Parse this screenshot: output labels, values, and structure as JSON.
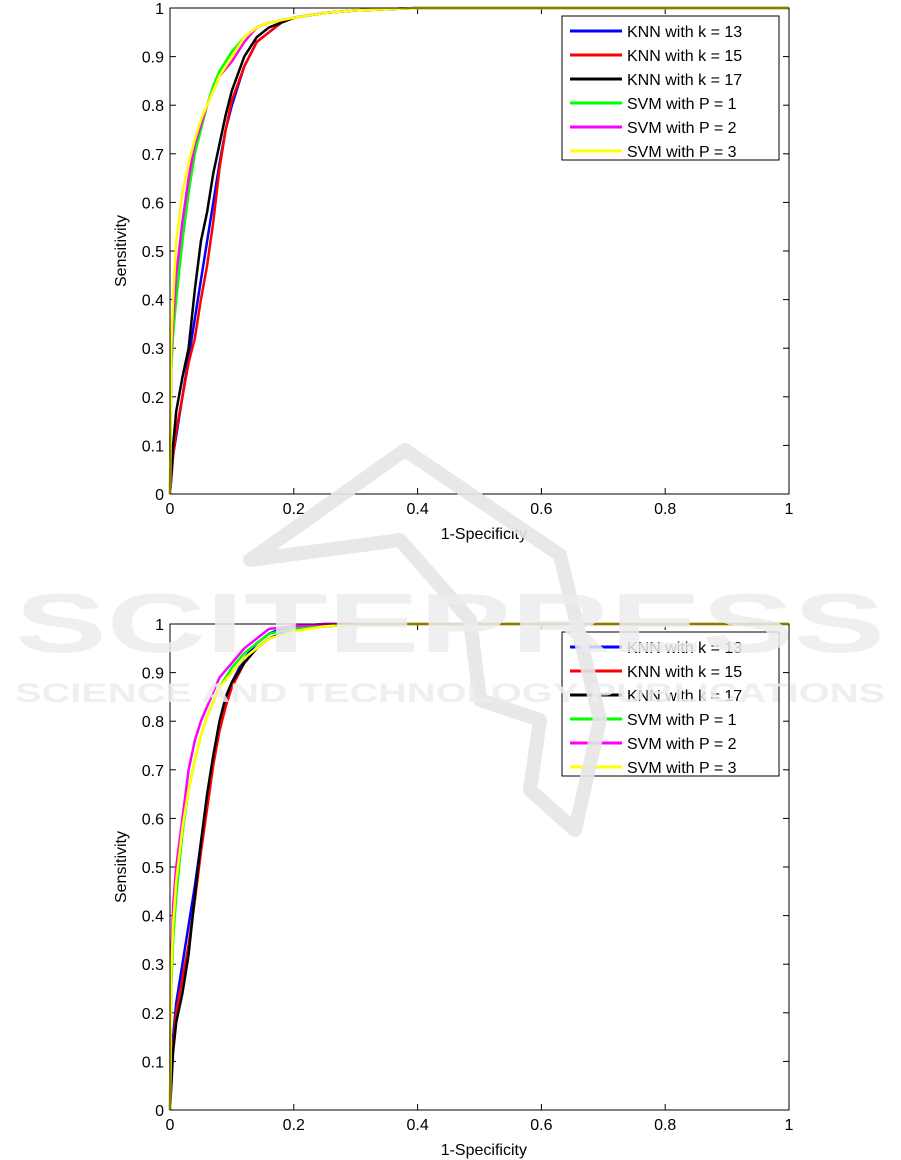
{
  "chart_data": [
    {
      "type": "line",
      "title": "",
      "xlabel": "1-Specificity",
      "ylabel": "Sensitivity",
      "xlim": [
        0,
        1
      ],
      "ylim": [
        0,
        1
      ],
      "xticks": [
        "0",
        "0.2",
        "0.4",
        "0.6",
        "0.8",
        "1"
      ],
      "yticks": [
        "0",
        "0.1",
        "0.2",
        "0.3",
        "0.4",
        "0.5",
        "0.6",
        "0.7",
        "0.8",
        "0.9",
        "1"
      ],
      "grid": false,
      "legend_position": "top-right",
      "series": [
        {
          "name": "KNN with k = 13",
          "color": "#0000ff",
          "x": [
            0,
            0.005,
            0.01,
            0.02,
            0.03,
            0.04,
            0.05,
            0.06,
            0.07,
            0.08,
            0.09,
            0.1,
            0.12,
            0.14,
            0.16,
            0.18,
            0.2,
            0.25,
            0.3,
            0.4,
            0.5,
            1.0
          ],
          "y": [
            0,
            0.08,
            0.12,
            0.2,
            0.28,
            0.36,
            0.44,
            0.52,
            0.6,
            0.68,
            0.75,
            0.8,
            0.88,
            0.93,
            0.95,
            0.97,
            0.98,
            0.99,
            0.995,
            1.0,
            1.0,
            1.0
          ]
        },
        {
          "name": "KNN with k = 15",
          "color": "#ff0000",
          "x": [
            0,
            0.005,
            0.01,
            0.02,
            0.03,
            0.04,
            0.05,
            0.06,
            0.07,
            0.08,
            0.09,
            0.1,
            0.12,
            0.14,
            0.16,
            0.18,
            0.2,
            0.25,
            0.3,
            0.4,
            0.5,
            1.0
          ],
          "y": [
            0,
            0.08,
            0.13,
            0.2,
            0.27,
            0.32,
            0.4,
            0.47,
            0.56,
            0.67,
            0.75,
            0.81,
            0.88,
            0.93,
            0.95,
            0.97,
            0.98,
            0.99,
            0.995,
            1.0,
            1.0,
            1.0
          ]
        },
        {
          "name": "KNN with k = 17",
          "color": "#000000",
          "x": [
            0,
            0.005,
            0.01,
            0.02,
            0.03,
            0.04,
            0.05,
            0.06,
            0.07,
            0.08,
            0.09,
            0.1,
            0.12,
            0.14,
            0.16,
            0.18,
            0.2,
            0.25,
            0.3,
            0.4,
            0.5,
            1.0
          ],
          "y": [
            0,
            0.1,
            0.17,
            0.24,
            0.3,
            0.42,
            0.52,
            0.58,
            0.66,
            0.72,
            0.78,
            0.83,
            0.9,
            0.94,
            0.96,
            0.97,
            0.98,
            0.99,
            0.995,
            1.0,
            1.0,
            1.0
          ]
        },
        {
          "name": "SVM with P = 1",
          "color": "#00ff00",
          "x": [
            0,
            0.002,
            0.005,
            0.01,
            0.02,
            0.03,
            0.04,
            0.05,
            0.06,
            0.07,
            0.08,
            0.1,
            0.12,
            0.14,
            0.16,
            0.2,
            0.25,
            0.3,
            0.4,
            0.5,
            1.0
          ],
          "y": [
            0,
            0.25,
            0.33,
            0.4,
            0.52,
            0.62,
            0.7,
            0.75,
            0.8,
            0.84,
            0.87,
            0.91,
            0.94,
            0.96,
            0.97,
            0.98,
            0.99,
            0.995,
            1.0,
            1.0,
            1.0
          ]
        },
        {
          "name": "SVM with P = 2",
          "color": "#ff00ff",
          "x": [
            0,
            0.002,
            0.005,
            0.01,
            0.02,
            0.03,
            0.04,
            0.05,
            0.06,
            0.07,
            0.08,
            0.1,
            0.12,
            0.14,
            0.16,
            0.2,
            0.25,
            0.3,
            0.4,
            0.5,
            1.0
          ],
          "y": [
            0,
            0.28,
            0.36,
            0.45,
            0.56,
            0.65,
            0.72,
            0.76,
            0.8,
            0.83,
            0.86,
            0.89,
            0.93,
            0.96,
            0.97,
            0.98,
            0.99,
            0.995,
            1.0,
            1.0,
            1.0
          ]
        },
        {
          "name": "SVM with P = 3",
          "color": "#ffff00",
          "x": [
            0,
            0.002,
            0.005,
            0.01,
            0.02,
            0.03,
            0.04,
            0.05,
            0.06,
            0.07,
            0.08,
            0.1,
            0.12,
            0.14,
            0.16,
            0.2,
            0.25,
            0.3,
            0.4,
            0.5,
            1.0
          ],
          "y": [
            0,
            0.3,
            0.4,
            0.52,
            0.62,
            0.68,
            0.73,
            0.77,
            0.8,
            0.83,
            0.86,
            0.9,
            0.94,
            0.96,
            0.97,
            0.98,
            0.99,
            0.995,
            1.0,
            1.0,
            1.0
          ]
        }
      ]
    },
    {
      "type": "line",
      "title": "",
      "xlabel": "1-Specificity",
      "ylabel": "Sensitivity",
      "xlim": [
        0,
        1
      ],
      "ylim": [
        0,
        1
      ],
      "xticks": [
        "0",
        "0.2",
        "0.4",
        "0.6",
        "0.8",
        "1"
      ],
      "yticks": [
        "0",
        "0.1",
        "0.2",
        "0.3",
        "0.4",
        "0.5",
        "0.6",
        "0.7",
        "0.8",
        "0.9",
        "1"
      ],
      "grid": false,
      "legend_position": "top-right",
      "series": [
        {
          "name": "KNN with k = 13",
          "color": "#0000ff",
          "x": [
            0,
            0.005,
            0.01,
            0.02,
            0.03,
            0.04,
            0.05,
            0.06,
            0.07,
            0.08,
            0.09,
            0.1,
            0.12,
            0.14,
            0.16,
            0.18,
            0.2,
            0.25,
            0.3,
            0.4,
            1.0
          ],
          "y": [
            0,
            0.15,
            0.22,
            0.3,
            0.38,
            0.46,
            0.55,
            0.64,
            0.72,
            0.79,
            0.84,
            0.88,
            0.93,
            0.96,
            0.98,
            0.99,
            0.995,
            1.0,
            1.0,
            1.0,
            1.0
          ]
        },
        {
          "name": "KNN with k = 15",
          "color": "#ff0000",
          "x": [
            0,
            0.005,
            0.01,
            0.02,
            0.03,
            0.04,
            0.05,
            0.06,
            0.07,
            0.08,
            0.09,
            0.1,
            0.12,
            0.14,
            0.16,
            0.18,
            0.2,
            0.25,
            0.3,
            0.4,
            1.0
          ],
          "y": [
            0,
            0.13,
            0.2,
            0.27,
            0.34,
            0.43,
            0.53,
            0.62,
            0.71,
            0.78,
            0.83,
            0.87,
            0.92,
            0.95,
            0.97,
            0.98,
            0.99,
            0.995,
            1.0,
            1.0,
            1.0
          ]
        },
        {
          "name": "KNN with k = 17",
          "color": "#000000",
          "x": [
            0,
            0.005,
            0.01,
            0.02,
            0.03,
            0.04,
            0.05,
            0.06,
            0.07,
            0.08,
            0.09,
            0.1,
            0.12,
            0.14,
            0.16,
            0.18,
            0.2,
            0.25,
            0.3,
            0.4,
            1.0
          ],
          "y": [
            0,
            0.12,
            0.18,
            0.24,
            0.32,
            0.44,
            0.55,
            0.65,
            0.73,
            0.8,
            0.85,
            0.88,
            0.92,
            0.95,
            0.97,
            0.98,
            0.99,
            0.995,
            1.0,
            1.0,
            1.0
          ]
        },
        {
          "name": "SVM with P = 1",
          "color": "#00ff00",
          "x": [
            0,
            0.002,
            0.005,
            0.01,
            0.02,
            0.03,
            0.04,
            0.05,
            0.06,
            0.07,
            0.08,
            0.1,
            0.12,
            0.14,
            0.16,
            0.2,
            0.25,
            0.3,
            0.4,
            1.0
          ],
          "y": [
            0,
            0.25,
            0.35,
            0.44,
            0.57,
            0.66,
            0.72,
            0.77,
            0.81,
            0.84,
            0.87,
            0.91,
            0.94,
            0.96,
            0.98,
            0.99,
            0.995,
            1.0,
            1.0,
            1.0
          ]
        },
        {
          "name": "SVM with P = 2",
          "color": "#ff00ff",
          "x": [
            0,
            0.002,
            0.005,
            0.01,
            0.02,
            0.03,
            0.04,
            0.05,
            0.06,
            0.07,
            0.08,
            0.1,
            0.12,
            0.14,
            0.16,
            0.2,
            0.25,
            0.3,
            0.4,
            1.0
          ],
          "y": [
            0,
            0.3,
            0.42,
            0.5,
            0.6,
            0.7,
            0.76,
            0.8,
            0.83,
            0.86,
            0.89,
            0.92,
            0.95,
            0.97,
            0.99,
            0.995,
            1.0,
            1.0,
            1.0,
            1.0
          ]
        },
        {
          "name": "SVM with P = 3",
          "color": "#ffff00",
          "x": [
            0,
            0.002,
            0.005,
            0.01,
            0.02,
            0.03,
            0.04,
            0.05,
            0.06,
            0.07,
            0.08,
            0.1,
            0.12,
            0.14,
            0.16,
            0.2,
            0.25,
            0.3,
            0.4,
            1.0
          ],
          "y": [
            0,
            0.28,
            0.38,
            0.47,
            0.58,
            0.66,
            0.72,
            0.77,
            0.81,
            0.84,
            0.87,
            0.9,
            0.93,
            0.95,
            0.97,
            0.985,
            0.995,
            1.0,
            1.0,
            1.0
          ]
        }
      ]
    }
  ],
  "watermark": {
    "line1": "SCITEPRESS",
    "line2": "SCIENCE AND TECHNOLOGY PUBLICATIONS"
  }
}
